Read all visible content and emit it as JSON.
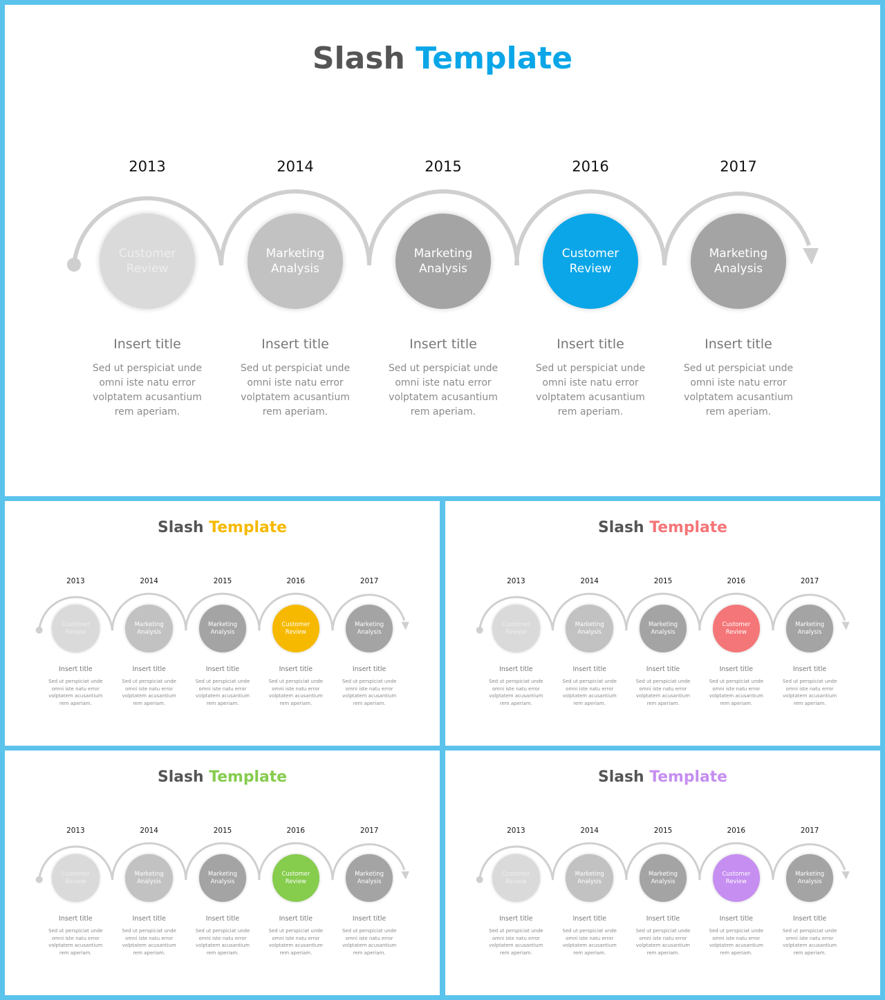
{
  "slides": [
    {
      "title_word1": "Slash",
      "title_word2": "Template",
      "accent": "#0aa6e8"
    },
    {
      "title_word1": "Slash",
      "title_word2": "Template",
      "accent": "#f6b900"
    },
    {
      "title_word1": "Slash",
      "title_word2": "Template",
      "accent": "#f47678"
    },
    {
      "title_word1": "Slash",
      "title_word2": "Template",
      "accent": "#86cc4d"
    },
    {
      "title_word1": "Slash",
      "title_word2": "Template",
      "accent": "#c58ef0"
    }
  ],
  "steps": [
    {
      "year": "2013",
      "label_line1": "Customer",
      "label_line2": "Review",
      "title": "Insert title",
      "desc_line1": "Sed ut perspiciat unde",
      "desc_line2": "omni iste natu error",
      "desc_line3": "volptatem acusantium",
      "desc_line4": "rem aperiam.",
      "fill": "#dadada",
      "text_color": "#eeeeee"
    },
    {
      "year": "2014",
      "label_line1": "Marketing",
      "label_line2": "Analysis",
      "title": "Insert title",
      "desc_line1": "Sed ut perspiciat unde",
      "desc_line2": "omni iste natu error",
      "desc_line3": "volptatem acusantium",
      "desc_line4": "rem aperiam.",
      "fill": "#c2c2c2",
      "text_color": "#ffffff"
    },
    {
      "year": "2015",
      "label_line1": "Marketing",
      "label_line2": "Analysis",
      "title": "Insert title",
      "desc_line1": "Sed ut perspiciat unde",
      "desc_line2": "omni iste natu error",
      "desc_line3": "volptatem acusantium",
      "desc_line4": "rem aperiam.",
      "fill": "#a4a4a4",
      "text_color": "#ffffff"
    },
    {
      "year": "2016",
      "label_line1": "Customer",
      "label_line2": "Review",
      "title": "Insert title",
      "desc_line1": "Sed ut perspiciat unde",
      "desc_line2": "omni iste natu error",
      "desc_line3": "volptatem acusantium",
      "desc_line4": "rem aperiam.",
      "fill": "accent",
      "text_color": "#ffffff"
    },
    {
      "year": "2017",
      "label_line1": "Marketing",
      "label_line2": "Analysis",
      "title": "Insert title",
      "desc_line1": "Sed ut perspiciat unde",
      "desc_line2": "omni iste natu error",
      "desc_line3": "volptatem acusantium",
      "desc_line4": "rem aperiam.",
      "fill": "#a4a4a4",
      "text_color": "#ffffff"
    }
  ]
}
